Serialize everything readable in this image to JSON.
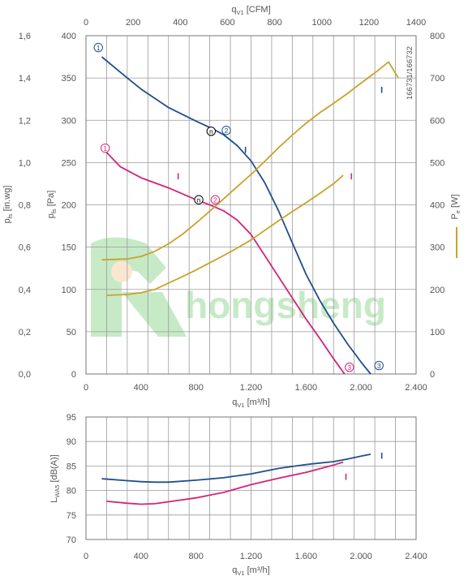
{
  "colors": {
    "navy": "#1f4e8c",
    "magenta": "#d4237a",
    "mustard": "#c9a22a",
    "grid": "#9a9a9a",
    "axis_text": "#555555",
    "watermark": "#7ccf7a"
  },
  "watermark": {
    "text": "hongsheng"
  },
  "chart_data": [
    {
      "type": "line",
      "top_axis": {
        "label": "q",
        "label_sub": "V1",
        "label_unit": " [CFM]",
        "range": [
          0,
          1400
        ],
        "ticks": [
          "0",
          "200",
          "400",
          "600",
          "800",
          "1000",
          "1200",
          "1400"
        ]
      },
      "xlabel": "q",
      "xlabel_sub": "V1",
      "xlabel_unit": " [m³/h]",
      "xlim": [
        0,
        2400
      ],
      "xticks": [
        "0",
        "400",
        "800",
        "1.200",
        "1.600",
        "2.000",
        "2.400"
      ],
      "ylabel": "p",
      "ylabel_sub": "fs",
      "ylabel_unit": " [Pa]",
      "ylim": [
        0,
        400
      ],
      "yticks": [
        "0",
        "50",
        "100",
        "150",
        "200",
        "250",
        "300",
        "350",
        "400"
      ],
      "outer_left_axis": {
        "label": "p",
        "label_sub": "fs",
        "label_unit": " [in.wg]",
        "range": [
          0,
          1.6
        ],
        "ticks": [
          "0,0",
          "0,2",
          "0,4",
          "0,6",
          "0,8",
          "1,0",
          "1,2",
          "1,4",
          "1,6"
        ]
      },
      "right_axis": {
        "label": "P",
        "label_sub": "e",
        "label_unit": " [W]",
        "range": [
          0,
          800
        ],
        "ticks": [
          "0",
          "100",
          "200",
          "300",
          "400",
          "500",
          "600",
          "700",
          "800"
        ]
      },
      "side_code": "166731/166732",
      "grid": true,
      "series": [
        {
          "key": "pressure_1",
          "color": "navy",
          "axis": "left",
          "x": [
            115,
            300,
            400,
            600,
            800,
            920,
            1000,
            1100,
            1200,
            1300,
            1400,
            1500,
            1600,
            1700,
            1800,
            1900,
            2000,
            2070
          ],
          "y": [
            375,
            350,
            337,
            315,
            299,
            290,
            283,
            270,
            252,
            226,
            193,
            155,
            118,
            87,
            60,
            36,
            14,
            0
          ]
        },
        {
          "key": "pressure_2",
          "color": "magenta",
          "axis": "left",
          "x": [
            150,
            250,
            400,
            600,
            800,
            900,
            1000,
            1100,
            1200,
            1300,
            1400,
            1500,
            1600,
            1700,
            1800,
            1880
          ],
          "y": [
            262,
            245,
            232,
            220,
            206,
            200,
            193,
            182,
            165,
            140,
            115,
            90,
            65,
            42,
            18,
            0
          ]
        },
        {
          "key": "power_1",
          "color": "mustard",
          "axis": "right",
          "x": [
            115,
            300,
            400,
            500,
            600,
            700,
            800,
            900,
            1000,
            1100,
            1200,
            1300,
            1400,
            1500,
            1600,
            1700,
            1800,
            1900,
            2000,
            2100,
            2200,
            2270
          ],
          "y": [
            270,
            272,
            278,
            290,
            308,
            330,
            357,
            385,
            414,
            443,
            472,
            503,
            535,
            565,
            593,
            618,
            640,
            663,
            688,
            712,
            738,
            700
          ]
        },
        {
          "key": "power_2",
          "color": "mustard",
          "axis": "right",
          "x": [
            150,
            300,
            400,
            500,
            600,
            700,
            800,
            900,
            1000,
            1100,
            1200,
            1300,
            1400,
            1500,
            1600,
            1700,
            1800,
            1870
          ],
          "y": [
            186,
            188,
            192,
            200,
            215,
            230,
            246,
            263,
            280,
            298,
            317,
            340,
            362,
            384,
            405,
            427,
            450,
            470
          ]
        }
      ],
      "markers": [
        {
          "text": "1",
          "color": "navy",
          "x": 90,
          "y": 386
        },
        {
          "text": "2",
          "color": "navy",
          "x": 1020,
          "y": 288
        },
        {
          "text": "3",
          "color": "navy",
          "x": 2130,
          "y": 10
        },
        {
          "text": "1",
          "color": "magenta",
          "x": 140,
          "y": 267
        },
        {
          "text": "2",
          "color": "magenta",
          "x": 940,
          "y": 206
        },
        {
          "text": "3",
          "color": "magenta",
          "x": 1915,
          "y": 8
        },
        {
          "text": "n",
          "color": "black",
          "x": 910,
          "y": 287
        },
        {
          "text": "n",
          "color": "black",
          "x": 820,
          "y": 206
        }
      ],
      "tags": [
        {
          "text": "I",
          "color": "navy",
          "x": 1160,
          "y": 265
        },
        {
          "text": "I",
          "color": "navy",
          "x": 2150,
          "y": 336
        },
        {
          "text": "I",
          "color": "magenta",
          "x": 670,
          "y": 234
        },
        {
          "text": "I",
          "color": "magenta",
          "x": 1930,
          "y": 234
        }
      ]
    },
    {
      "type": "line",
      "xlabel": "q",
      "xlabel_sub": "V1",
      "xlabel_unit": " [m³/h]",
      "xlim": [
        0,
        2400
      ],
      "xticks": [
        "0",
        "400",
        "800",
        "1.200",
        "1.600",
        "2.000",
        "2.400"
      ],
      "ylabel": "L",
      "ylabel_sub": "WA5",
      "ylabel_unit": " [dB(A)]",
      "ylim": [
        70,
        95
      ],
      "yticks": [
        "70",
        "75",
        "80",
        "85",
        "90",
        "95"
      ],
      "grid": true,
      "series": [
        {
          "key": "sound_1",
          "color": "navy",
          "x": [
            115,
            300,
            400,
            500,
            600,
            800,
            1000,
            1200,
            1400,
            1600,
            1800,
            1900,
            2000,
            2070
          ],
          "y": [
            82.4,
            82.0,
            81.8,
            81.7,
            81.7,
            82.1,
            82.6,
            83.4,
            84.5,
            85.3,
            85.9,
            86.4,
            87.0,
            87.4
          ]
        },
        {
          "key": "sound_2",
          "color": "magenta",
          "x": [
            150,
            300,
            400,
            500,
            600,
            800,
            1000,
            1200,
            1400,
            1600,
            1800,
            1870
          ],
          "y": [
            77.8,
            77.4,
            77.2,
            77.3,
            77.7,
            78.5,
            79.6,
            81.2,
            82.5,
            83.7,
            85.2,
            85.8
          ]
        }
      ],
      "tags": [
        {
          "text": "I",
          "color": "navy",
          "x": 2150,
          "y": 87.1
        },
        {
          "text": "I",
          "color": "magenta",
          "x": 1890,
          "y": 82.8
        }
      ]
    }
  ]
}
